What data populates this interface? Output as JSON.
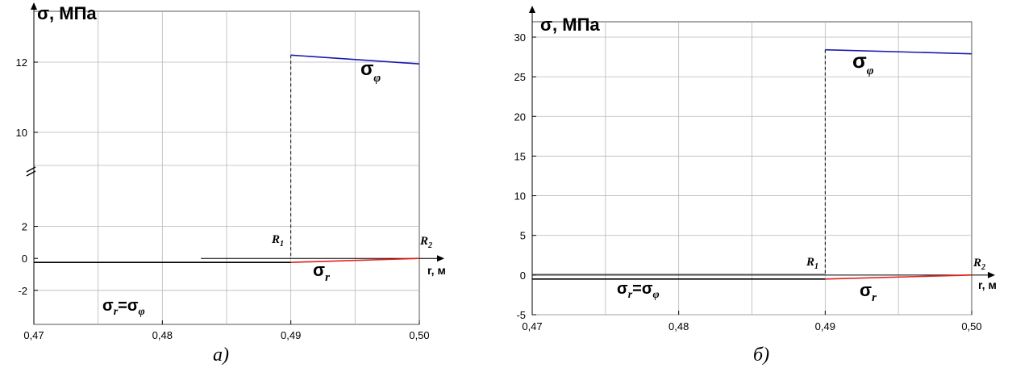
{
  "chart_data": [
    {
      "type": "line",
      "caption": "а)",
      "ylabel": "σ, МПа",
      "xlabel": "r, м",
      "xlim": [
        0.47,
        0.5
      ],
      "x_ticks": [
        "0,47",
        "0,48",
        "0,49",
        "0,50"
      ],
      "y_ticks_lower": [
        "-2",
        "0",
        "2"
      ],
      "y_ticks_upper": [
        "10",
        "12"
      ],
      "y_axis_break": true,
      "ylim_lower": [
        -2,
        3
      ],
      "ylim_upper": [
        9,
        13
      ],
      "grid": true,
      "markers": {
        "R1_x": 0.49,
        "R2_x": 0.5,
        "R1_label": "R",
        "R1_sub": "1",
        "R2_label": "R",
        "R2_sub": "2"
      },
      "series": [
        {
          "label_main": "σ",
          "label_sub": "r",
          "label_eq": "=σ",
          "label_sub2": "φ",
          "color": "#000000",
          "x": [
            0.47,
            0.49
          ],
          "y": [
            -0.25,
            -0.25
          ]
        },
        {
          "label_main": "σ",
          "label_sub": "r",
          "color": "#e0201a",
          "x": [
            0.49,
            0.5
          ],
          "y": [
            -0.25,
            0.0
          ]
        },
        {
          "label_main": "σ",
          "label_sub": "φ",
          "color": "#1a1ab0",
          "x": [
            0.49,
            0.5
          ],
          "y": [
            12.2,
            11.95
          ]
        }
      ]
    },
    {
      "type": "line",
      "caption": "б)",
      "ylabel": "σ, МПа",
      "xlabel": "r, м",
      "xlim": [
        0.47,
        0.5
      ],
      "ylim": [
        -5,
        30
      ],
      "x_ticks": [
        "0,47",
        "0,48",
        "0,49",
        "0,50"
      ],
      "y_ticks": [
        "-5",
        "0",
        "5",
        "10",
        "15",
        "20",
        "25",
        "30"
      ],
      "grid": true,
      "markers": {
        "R1_x": 0.49,
        "R2_x": 0.5,
        "R1_label": "R",
        "R1_sub": "1",
        "R2_label": "R",
        "R2_sub": "2"
      },
      "series": [
        {
          "label_main": "σ",
          "label_sub": "r",
          "label_eq": "=σ",
          "label_sub2": "φ",
          "color": "#000000",
          "x": [
            0.47,
            0.49
          ],
          "y": [
            -0.5,
            -0.5
          ]
        },
        {
          "label_main": "σ",
          "label_sub": "r",
          "color": "#e0201a",
          "x": [
            0.49,
            0.5
          ],
          "y": [
            -0.5,
            0.0
          ]
        },
        {
          "label_main": "σ",
          "label_sub": "φ",
          "color": "#1a1ab0",
          "x": [
            0.49,
            0.5
          ],
          "y": [
            28.4,
            27.9
          ]
        }
      ]
    }
  ]
}
